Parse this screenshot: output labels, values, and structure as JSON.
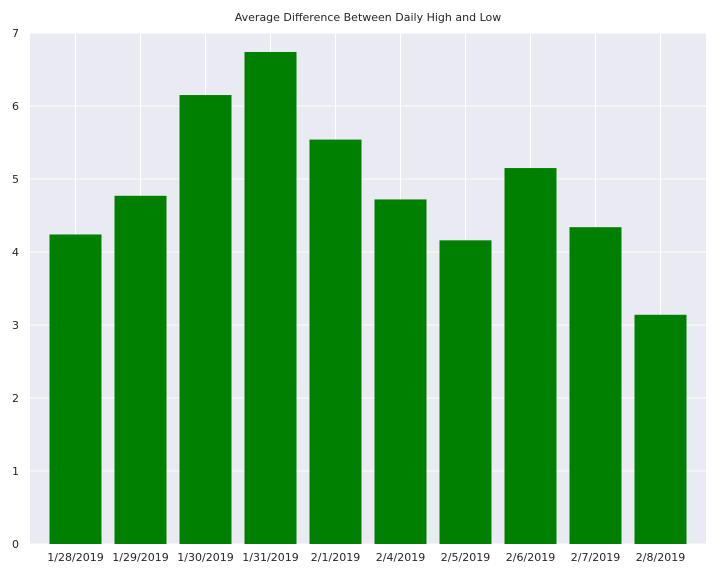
{
  "chart_data": {
    "type": "bar",
    "title": "Average Difference Between Daily High and Low",
    "xlabel": "",
    "ylabel": "",
    "categories": [
      "1/28/2019",
      "1/29/2019",
      "1/30/2019",
      "1/31/2019",
      "2/1/2019",
      "2/4/2019",
      "2/5/2019",
      "2/6/2019",
      "2/7/2019",
      "2/8/2019"
    ],
    "values": [
      4.24,
      4.77,
      6.15,
      6.74,
      5.54,
      4.72,
      4.16,
      5.15,
      4.34,
      3.14
    ],
    "ylim": [
      0,
      7
    ],
    "yticks": [
      "0",
      "1",
      "2",
      "3",
      "4",
      "5",
      "6",
      "7"
    ],
    "grid": true,
    "legend": "none",
    "colors": {
      "bar": "#008000",
      "plot_background": "#eaeaf2",
      "grid": "#ffffff",
      "text": "#262626"
    }
  }
}
